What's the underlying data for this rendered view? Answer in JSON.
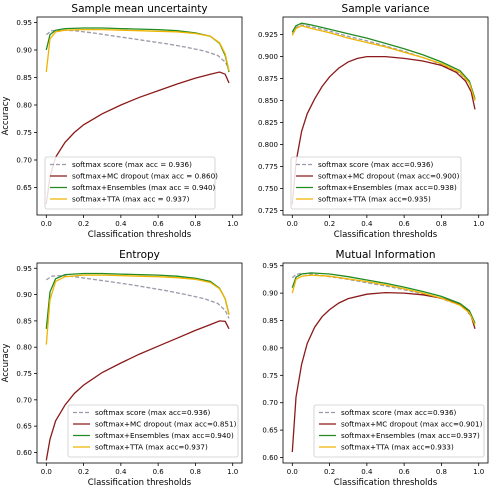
{
  "figure": {
    "shared_ylabel": "Accuracy",
    "shared_xlabel": "Classification thresholds"
  },
  "chart_data": [
    {
      "type": "line",
      "title": "Sample mean uncertainty",
      "xlabel": "Classification thresholds",
      "ylabel": "Accuracy",
      "xlim": [
        -0.05,
        1.05
      ],
      "ylim": [
        0.6,
        0.96
      ],
      "xticks": [
        "0.0",
        "0.2",
        "0.4",
        "0.6",
        "0.8",
        "1.0"
      ],
      "yticks": [
        "0.65",
        "0.70",
        "0.75",
        "0.80",
        "0.85",
        "0.90",
        "0.95"
      ],
      "legend_position": "lower-left",
      "series": [
        {
          "name": "softmax score (max acc = 0.936)",
          "color": "#9a9aaa",
          "dash": true,
          "x": [
            0.0,
            0.03,
            0.08,
            0.15,
            0.25,
            0.35,
            0.45,
            0.55,
            0.65,
            0.75,
            0.85,
            0.92,
            0.96,
            0.98
          ],
          "y": [
            0.928,
            0.935,
            0.936,
            0.935,
            0.931,
            0.926,
            0.921,
            0.916,
            0.911,
            0.905,
            0.898,
            0.89,
            0.878,
            0.866
          ]
        },
        {
          "name": "softmax+MC dropout (max acc = 0.860)",
          "color": "#8b1a1a",
          "x": [
            0.0,
            0.02,
            0.05,
            0.1,
            0.15,
            0.2,
            0.3,
            0.4,
            0.5,
            0.6,
            0.7,
            0.8,
            0.88,
            0.93,
            0.96,
            0.98
          ],
          "y": [
            0.62,
            0.67,
            0.705,
            0.732,
            0.75,
            0.764,
            0.784,
            0.8,
            0.814,
            0.826,
            0.838,
            0.849,
            0.856,
            0.86,
            0.856,
            0.84
          ]
        },
        {
          "name": "softmax+Ensembles (max acc = 0.940)",
          "color": "#228b22",
          "x": [
            0.0,
            0.02,
            0.05,
            0.1,
            0.2,
            0.3,
            0.4,
            0.5,
            0.6,
            0.7,
            0.8,
            0.88,
            0.93,
            0.96,
            0.98
          ],
          "y": [
            0.9,
            0.928,
            0.936,
            0.939,
            0.94,
            0.94,
            0.939,
            0.938,
            0.937,
            0.935,
            0.931,
            0.925,
            0.912,
            0.89,
            0.86
          ]
        },
        {
          "name": "softmax+TTA (max acc = 0.937)",
          "color": "#f0b400",
          "x": [
            0.0,
            0.02,
            0.05,
            0.1,
            0.2,
            0.3,
            0.4,
            0.5,
            0.6,
            0.7,
            0.8,
            0.88,
            0.93,
            0.96,
            0.98
          ],
          "y": [
            0.86,
            0.92,
            0.933,
            0.936,
            0.937,
            0.937,
            0.936,
            0.935,
            0.934,
            0.933,
            0.93,
            0.925,
            0.913,
            0.893,
            0.862
          ]
        }
      ]
    },
    {
      "type": "line",
      "title": "Sample variance",
      "xlabel": "Classification thresholds",
      "ylabel": "",
      "xlim": [
        -0.05,
        1.05
      ],
      "ylim": [
        0.72,
        0.945
      ],
      "xticks": [
        "0.0",
        "0.2",
        "0.4",
        "0.6",
        "0.8",
        "1.0"
      ],
      "yticks": [
        "0.725",
        "0.750",
        "0.775",
        "0.800",
        "0.825",
        "0.850",
        "0.875",
        "0.900",
        "0.925"
      ],
      "legend_position": "lower-left",
      "series": [
        {
          "name": "softmax score (max acc=0.936)",
          "color": "#9a9aaa",
          "dash": true,
          "x": [
            0.0,
            0.02,
            0.05,
            0.1,
            0.2,
            0.3,
            0.4,
            0.5,
            0.6,
            0.7,
            0.8,
            0.9,
            0.95,
            0.98
          ],
          "y": [
            0.926,
            0.933,
            0.936,
            0.934,
            0.929,
            0.923,
            0.918,
            0.912,
            0.906,
            0.899,
            0.891,
            0.881,
            0.87,
            0.85
          ]
        },
        {
          "name": "softmax+MC dropout (max acc=0.900)",
          "color": "#8b1a1a",
          "x": [
            0.0,
            0.02,
            0.05,
            0.08,
            0.12,
            0.16,
            0.2,
            0.25,
            0.3,
            0.35,
            0.4,
            0.5,
            0.6,
            0.7,
            0.8,
            0.88,
            0.93,
            0.96,
            0.98
          ],
          "y": [
            0.732,
            0.78,
            0.815,
            0.835,
            0.852,
            0.866,
            0.877,
            0.887,
            0.894,
            0.898,
            0.9,
            0.9,
            0.898,
            0.895,
            0.89,
            0.882,
            0.872,
            0.86,
            0.84
          ]
        },
        {
          "name": "softmax+Ensembles (max acc=0.938)",
          "color": "#228b22",
          "x": [
            0.0,
            0.02,
            0.05,
            0.1,
            0.2,
            0.3,
            0.4,
            0.5,
            0.6,
            0.7,
            0.8,
            0.9,
            0.95,
            0.98
          ],
          "y": [
            0.928,
            0.935,
            0.938,
            0.936,
            0.931,
            0.926,
            0.921,
            0.915,
            0.909,
            0.902,
            0.894,
            0.884,
            0.872,
            0.852
          ]
        },
        {
          "name": "softmax+TTA (max acc=0.935)",
          "color": "#f0b400",
          "x": [
            0.0,
            0.02,
            0.05,
            0.1,
            0.2,
            0.3,
            0.4,
            0.5,
            0.6,
            0.7,
            0.8,
            0.9,
            0.95,
            0.98
          ],
          "y": [
            0.924,
            0.932,
            0.935,
            0.932,
            0.927,
            0.921,
            0.916,
            0.911,
            0.905,
            0.899,
            0.892,
            0.882,
            0.87,
            0.85
          ]
        }
      ]
    },
    {
      "type": "line",
      "title": "Entropy",
      "xlabel": "Classification thresholds",
      "ylabel": "Accuracy",
      "xlim": [
        -0.05,
        1.05
      ],
      "ylim": [
        0.58,
        0.96
      ],
      "xticks": [
        "0.0",
        "0.2",
        "0.4",
        "0.6",
        "0.8",
        "1.0"
      ],
      "yticks": [
        "0.60",
        "0.65",
        "0.70",
        "0.75",
        "0.80",
        "0.85",
        "0.90",
        "0.95"
      ],
      "legend_position": "lower-right",
      "series": [
        {
          "name": "softmax score (max acc=0.936)",
          "color": "#9a9aaa",
          "dash": true,
          "x": [
            0.0,
            0.03,
            0.08,
            0.15,
            0.25,
            0.35,
            0.45,
            0.55,
            0.65,
            0.75,
            0.85,
            0.92,
            0.96,
            0.98
          ],
          "y": [
            0.928,
            0.935,
            0.936,
            0.934,
            0.929,
            0.924,
            0.919,
            0.913,
            0.907,
            0.9,
            0.892,
            0.883,
            0.87,
            0.855
          ]
        },
        {
          "name": "softmax+MC dropout (max acc=0.851)",
          "color": "#8b1a1a",
          "x": [
            0.0,
            0.02,
            0.05,
            0.1,
            0.15,
            0.2,
            0.3,
            0.4,
            0.5,
            0.6,
            0.7,
            0.8,
            0.88,
            0.93,
            0.96,
            0.98
          ],
          "y": [
            0.585,
            0.625,
            0.66,
            0.69,
            0.712,
            0.728,
            0.752,
            0.77,
            0.787,
            0.802,
            0.817,
            0.832,
            0.843,
            0.85,
            0.849,
            0.835
          ]
        },
        {
          "name": "softmax+Ensembles (max acc=0.940)",
          "color": "#228b22",
          "x": [
            0.0,
            0.02,
            0.05,
            0.1,
            0.2,
            0.3,
            0.4,
            0.5,
            0.6,
            0.7,
            0.8,
            0.88,
            0.93,
            0.96,
            0.98
          ],
          "y": [
            0.835,
            0.905,
            0.93,
            0.938,
            0.94,
            0.94,
            0.939,
            0.938,
            0.937,
            0.935,
            0.931,
            0.925,
            0.912,
            0.892,
            0.862
          ]
        },
        {
          "name": "softmax+TTA (max acc=0.937)",
          "color": "#f0b400",
          "x": [
            0.0,
            0.02,
            0.05,
            0.1,
            0.2,
            0.3,
            0.4,
            0.5,
            0.6,
            0.7,
            0.8,
            0.88,
            0.93,
            0.96,
            0.98
          ],
          "y": [
            0.805,
            0.89,
            0.925,
            0.934,
            0.937,
            0.937,
            0.936,
            0.935,
            0.934,
            0.932,
            0.929,
            0.923,
            0.911,
            0.892,
            0.862
          ]
        }
      ]
    },
    {
      "type": "line",
      "title": "Mutual Information",
      "xlabel": "Classification thresholds",
      "ylabel": "",
      "xlim": [
        -0.05,
        1.05
      ],
      "ylim": [
        0.59,
        0.955
      ],
      "xticks": [
        "0.0",
        "0.2",
        "0.4",
        "0.6",
        "0.8",
        "1.0"
      ],
      "yticks": [
        "0.60",
        "0.65",
        "0.70",
        "0.75",
        "0.80",
        "0.85",
        "0.90",
        "0.95"
      ],
      "legend_position": "lower-right",
      "series": [
        {
          "name": "softmax score (max acc=0.936)",
          "color": "#9a9aaa",
          "dash": true,
          "x": [
            0.0,
            0.02,
            0.05,
            0.1,
            0.2,
            0.3,
            0.4,
            0.5,
            0.6,
            0.7,
            0.8,
            0.9,
            0.95,
            0.98
          ],
          "y": [
            0.928,
            0.934,
            0.936,
            0.935,
            0.93,
            0.925,
            0.919,
            0.913,
            0.906,
            0.899,
            0.89,
            0.878,
            0.865,
            0.845
          ]
        },
        {
          "name": "softmax+MC dropout (max acc=0.901)",
          "color": "#8b1a1a",
          "x": [
            0.0,
            0.02,
            0.05,
            0.08,
            0.12,
            0.16,
            0.2,
            0.25,
            0.3,
            0.4,
            0.5,
            0.6,
            0.7,
            0.8,
            0.88,
            0.93,
            0.96,
            0.98
          ],
          "y": [
            0.61,
            0.71,
            0.77,
            0.808,
            0.838,
            0.857,
            0.87,
            0.882,
            0.89,
            0.898,
            0.901,
            0.9,
            0.897,
            0.891,
            0.883,
            0.872,
            0.858,
            0.835
          ]
        },
        {
          "name": "softmax+Ensembles (max acc=0.937)",
          "color": "#228b22",
          "x": [
            0.0,
            0.02,
            0.05,
            0.1,
            0.2,
            0.3,
            0.4,
            0.5,
            0.6,
            0.7,
            0.8,
            0.9,
            0.95,
            0.98
          ],
          "y": [
            0.91,
            0.929,
            0.935,
            0.937,
            0.935,
            0.93,
            0.924,
            0.918,
            0.911,
            0.903,
            0.894,
            0.881,
            0.868,
            0.845
          ]
        },
        {
          "name": "softmax+TTA (max acc=0.933)",
          "color": "#f0b400",
          "x": [
            0.0,
            0.02,
            0.05,
            0.1,
            0.2,
            0.3,
            0.4,
            0.5,
            0.6,
            0.7,
            0.8,
            0.9,
            0.95,
            0.98
          ],
          "y": [
            0.9,
            0.925,
            0.931,
            0.933,
            0.931,
            0.926,
            0.921,
            0.915,
            0.908,
            0.9,
            0.891,
            0.878,
            0.864,
            0.842
          ]
        }
      ]
    }
  ]
}
